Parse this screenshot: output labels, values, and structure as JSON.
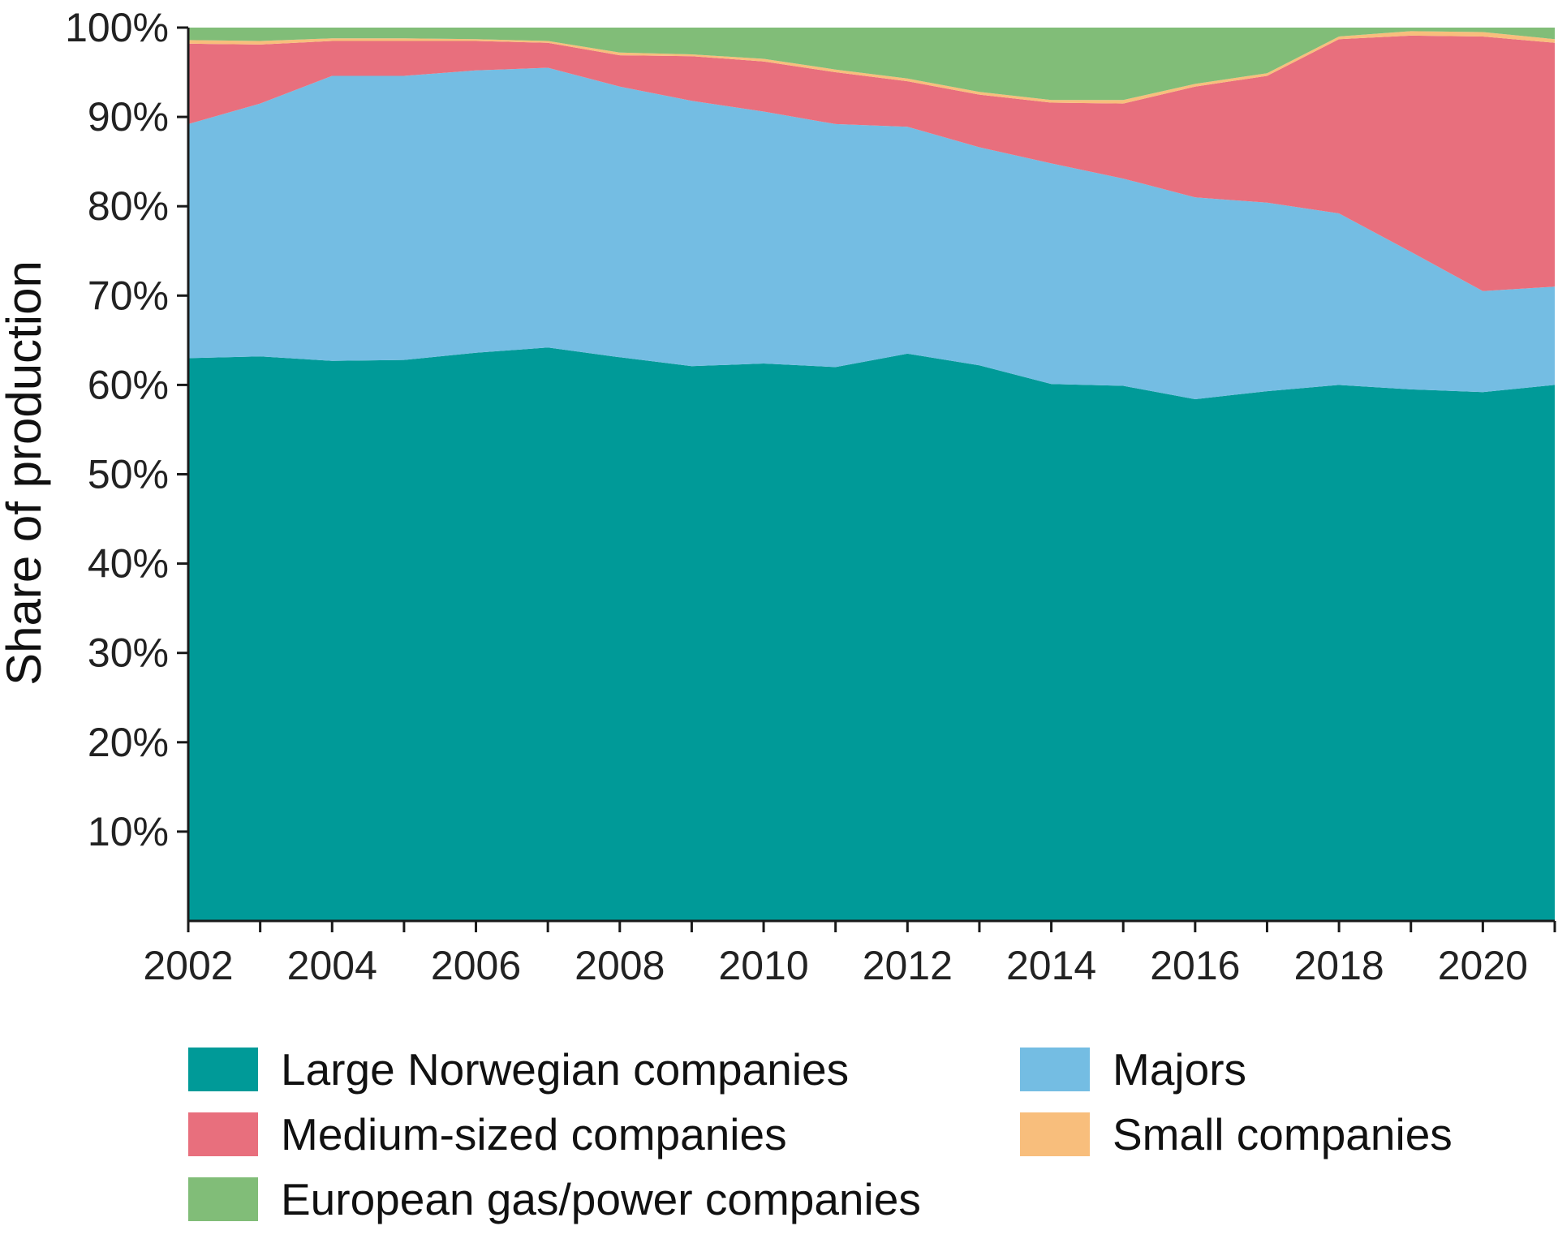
{
  "chart_data": {
    "type": "area",
    "stacked": true,
    "title": "",
    "xlabel": "",
    "ylabel": "Share of production",
    "x": [
      2002,
      2003,
      2004,
      2005,
      2006,
      2007,
      2008,
      2009,
      2010,
      2011,
      2012,
      2013,
      2014,
      2015,
      2016,
      2017,
      2018,
      2019,
      2020,
      2021
    ],
    "x_tick_labels": [
      "2002",
      "2004",
      "2006",
      "2008",
      "2010",
      "2012",
      "2014",
      "2016",
      "2018",
      "2020"
    ],
    "y_tick_labels": [
      "10%",
      "20%",
      "30%",
      "40%",
      "50%",
      "60%",
      "70%",
      "80%",
      "90%",
      "100%"
    ],
    "ylim": [
      0,
      100
    ],
    "xlim": [
      2002,
      2021
    ],
    "grid": false,
    "legend_position": "bottom",
    "series": [
      {
        "name": "Large Norwegian companies",
        "color": "#009a98",
        "values": [
          63.0,
          63.2,
          62.7,
          62.8,
          63.6,
          64.2,
          63.1,
          62.1,
          62.4,
          62.0,
          63.5,
          62.2,
          60.1,
          59.9,
          58.4,
          59.3,
          60.0,
          59.5,
          59.2,
          60.0
        ]
      },
      {
        "name": "Majors",
        "color": "#74bde3",
        "values": [
          26.2,
          28.3,
          31.9,
          31.8,
          31.6,
          31.3,
          30.3,
          29.7,
          28.2,
          27.2,
          25.4,
          24.4,
          24.7,
          23.2,
          22.6,
          21.1,
          19.2,
          15.4,
          11.3,
          11.0
        ]
      },
      {
        "name": "Medium-sized companies",
        "color": "#e86f7d",
        "values": [
          9.0,
          6.6,
          3.9,
          3.9,
          3.3,
          2.8,
          3.5,
          5.0,
          5.6,
          5.8,
          5.1,
          5.9,
          6.8,
          8.4,
          12.4,
          14.2,
          19.5,
          24.2,
          28.5,
          27.3
        ]
      },
      {
        "name": "Small companies",
        "color": "#f8be7c",
        "values": [
          0.4,
          0.4,
          0.3,
          0.3,
          0.2,
          0.2,
          0.3,
          0.2,
          0.3,
          0.3,
          0.3,
          0.3,
          0.3,
          0.4,
          0.3,
          0.3,
          0.3,
          0.5,
          0.5,
          0.4
        ]
      },
      {
        "name": "European gas/power companies",
        "color": "#81bd78",
        "values": [
          1.4,
          1.5,
          1.2,
          1.2,
          1.3,
          1.5,
          2.8,
          3.0,
          3.5,
          4.7,
          5.7,
          7.2,
          8.1,
          8.1,
          6.3,
          5.1,
          1.0,
          0.4,
          0.5,
          1.3
        ]
      }
    ]
  },
  "legend": {
    "items": [
      {
        "label": "Large Norwegian companies",
        "color": "#009a98"
      },
      {
        "label": "Majors",
        "color": "#74bde3"
      },
      {
        "label": "Medium-sized companies",
        "color": "#e86f7d"
      },
      {
        "label": "Small companies",
        "color": "#f8be7c"
      },
      {
        "label": "European gas/power companies",
        "color": "#81bd78"
      }
    ]
  }
}
